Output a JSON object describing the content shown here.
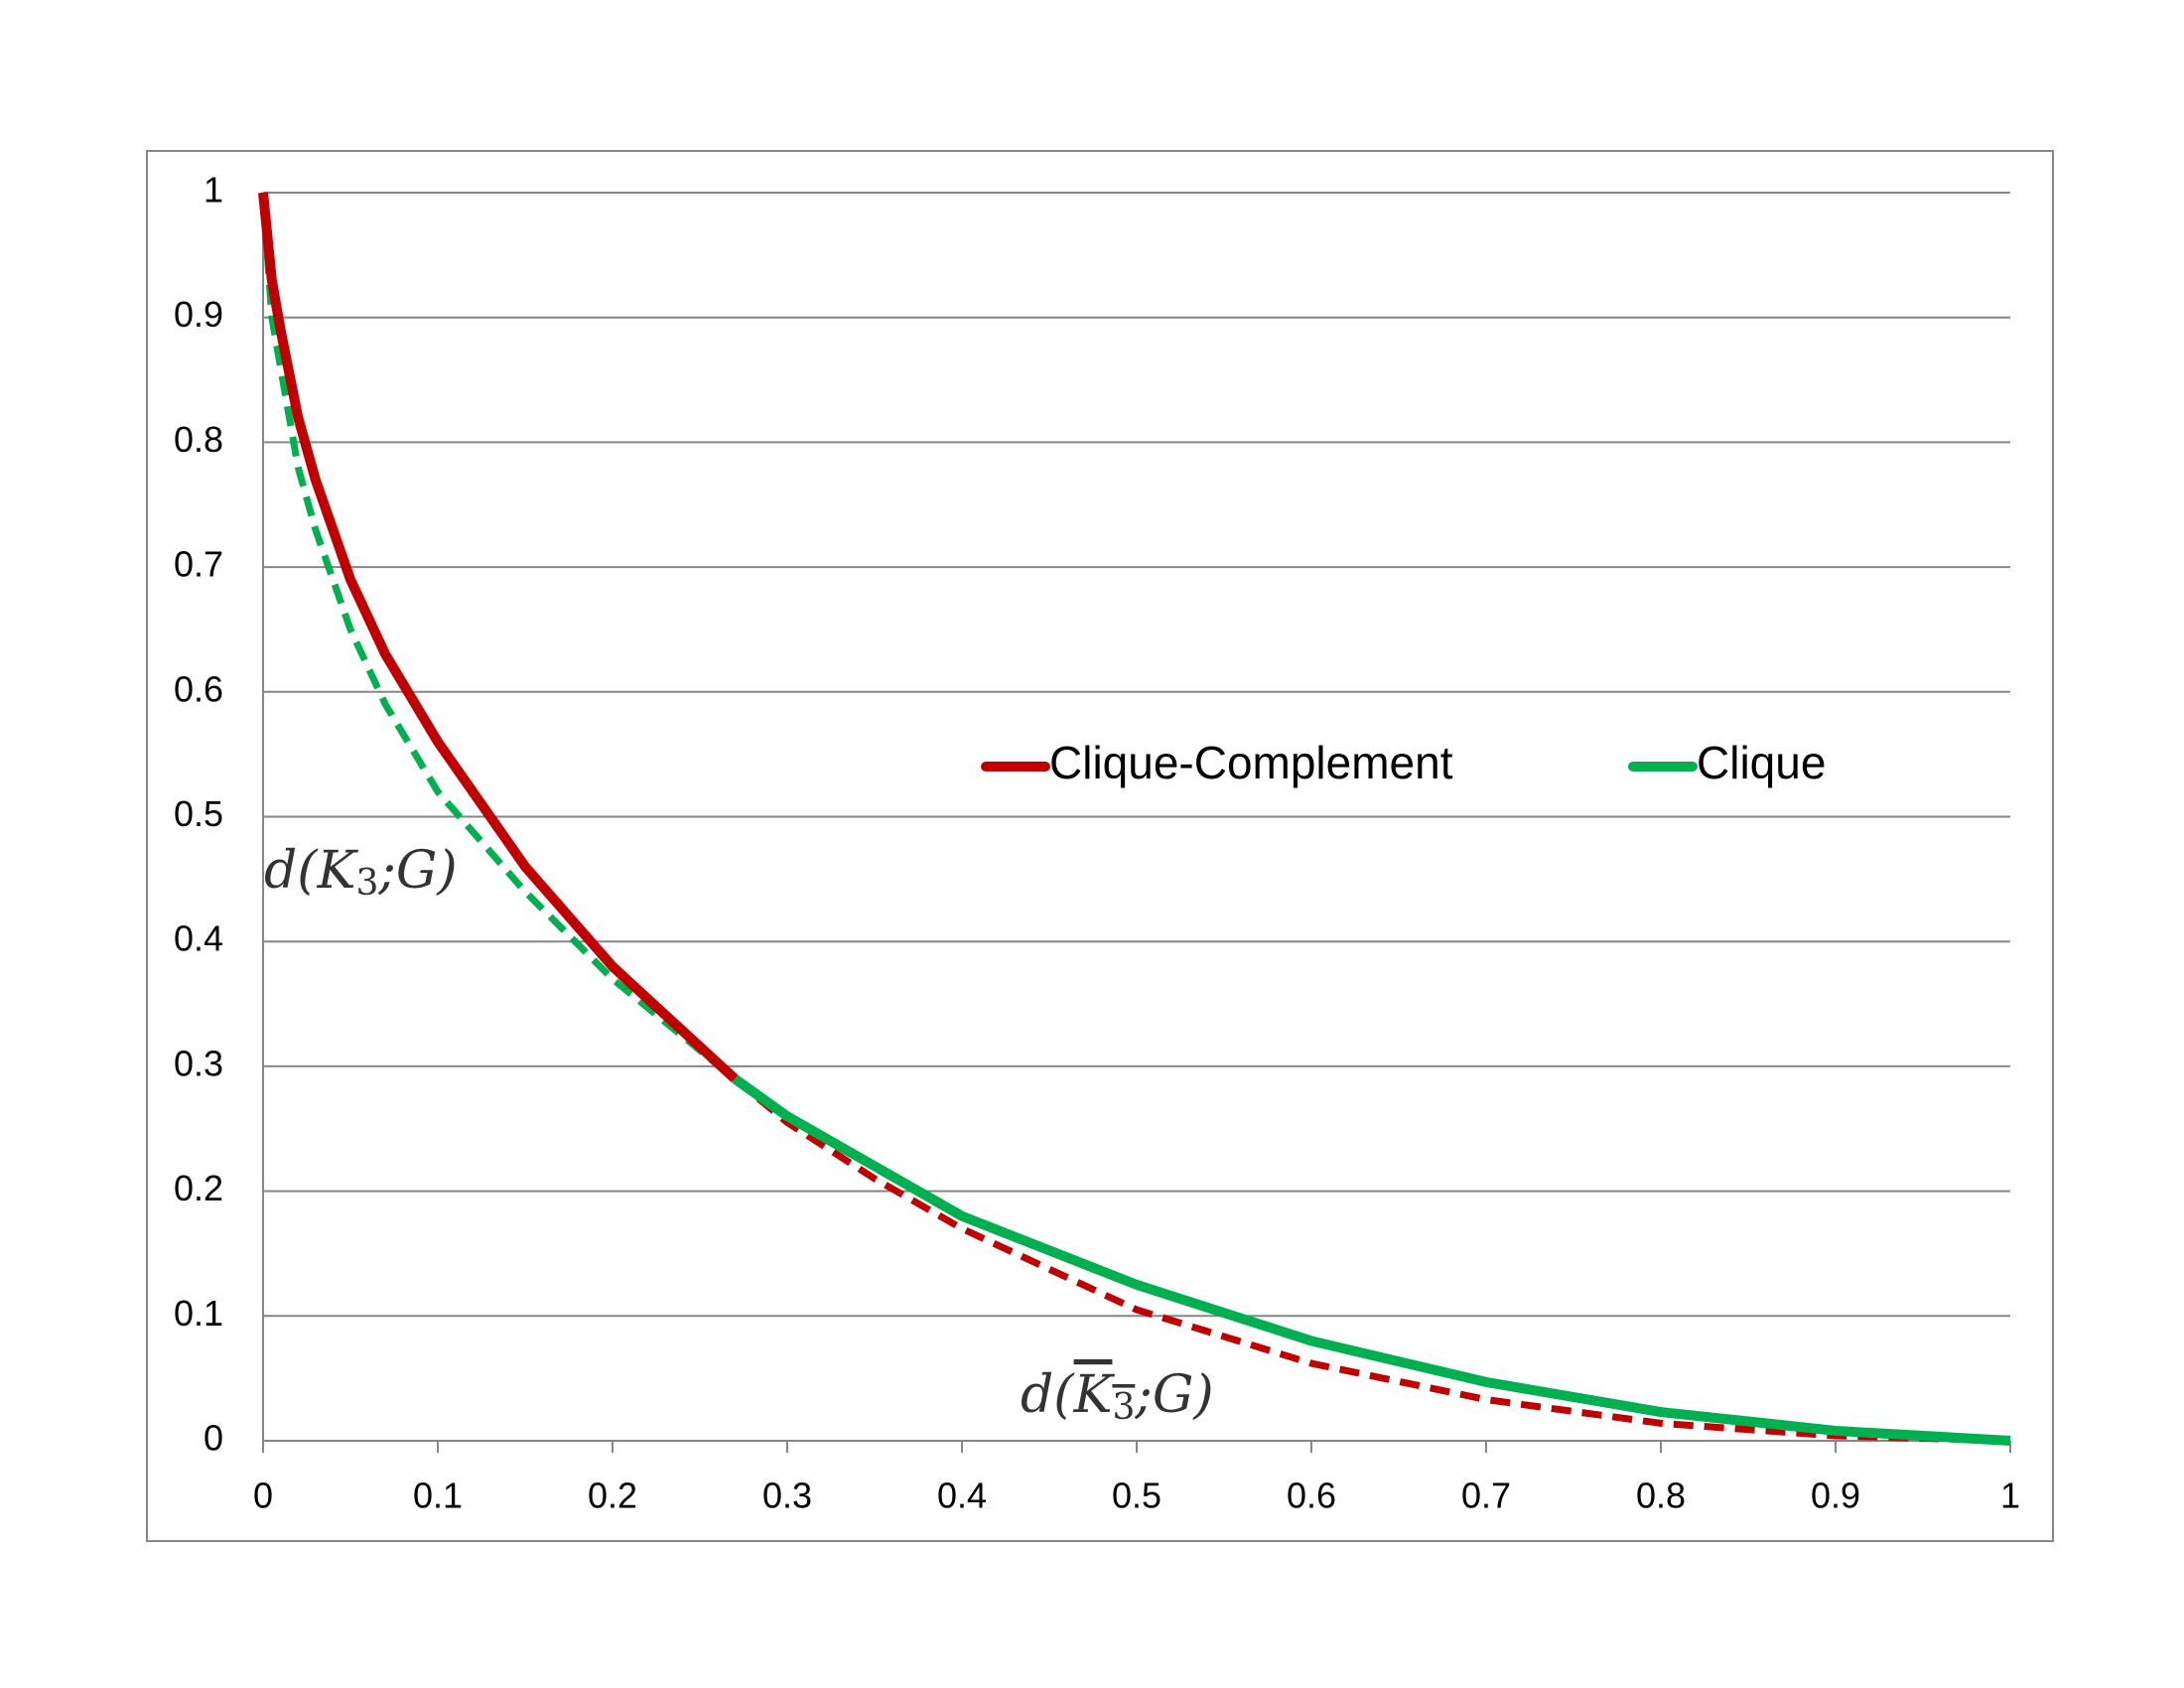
{
  "chart_data": {
    "type": "line",
    "x": [
      0,
      0.005,
      0.01,
      0.02,
      0.03,
      0.05,
      0.07,
      0.1,
      0.15,
      0.2,
      0.27,
      0.3,
      0.35,
      0.4,
      0.5,
      0.6,
      0.7,
      0.8,
      0.9,
      1
    ],
    "series": [
      {
        "color": "#c00000",
        "dashed": true,
        "values": [
          null,
          null,
          null,
          null,
          null,
          null,
          null,
          null,
          null,
          null,
          0.29,
          0.255,
          0.21,
          0.17,
          0.105,
          0.062,
          0.033,
          0.014,
          0.004,
          0
        ]
      },
      {
        "color": "#00b050",
        "dashed": true,
        "values": [
          1,
          0.9,
          0.86,
          0.78,
          0.73,
          0.65,
          0.59,
          0.52,
          0.44,
          0.37,
          0.29,
          null,
          null,
          null,
          null,
          null,
          null,
          null,
          null,
          null
        ]
      },
      {
        "name": "Clique-Complement",
        "color": "#c00000",
        "dashed": false,
        "values": [
          1,
          0.93,
          0.89,
          0.82,
          0.77,
          0.69,
          0.63,
          0.56,
          0.46,
          0.38,
          0.29,
          null,
          null,
          null,
          null,
          null,
          null,
          null,
          null,
          null
        ]
      },
      {
        "name": "Clique",
        "color": "#00b050",
        "dashed": false,
        "values": [
          null,
          null,
          null,
          null,
          null,
          null,
          null,
          null,
          null,
          null,
          0.29,
          0.26,
          0.22,
          0.18,
          0.125,
          0.08,
          0.047,
          0.023,
          0.008,
          0
        ]
      }
    ],
    "xlim": [
      0,
      1
    ],
    "ylim": [
      0,
      1
    ],
    "xticks": [
      0,
      0.1,
      0.2,
      0.3,
      0.4,
      0.5,
      0.6,
      0.7,
      0.8,
      0.9,
      1
    ],
    "yticks": [
      0,
      0.1,
      0.2,
      0.3,
      0.4,
      0.5,
      0.6,
      0.7,
      0.8,
      0.9,
      1
    ],
    "grid": true,
    "legend": "center-right",
    "annotations": [
      {
        "parts": [
          "d(",
          "K",
          "3",
          ";G)"
        ],
        "overline": false
      },
      {
        "parts": [
          "d(",
          "K",
          "3",
          ";G)"
        ],
        "overline": true
      }
    ]
  }
}
